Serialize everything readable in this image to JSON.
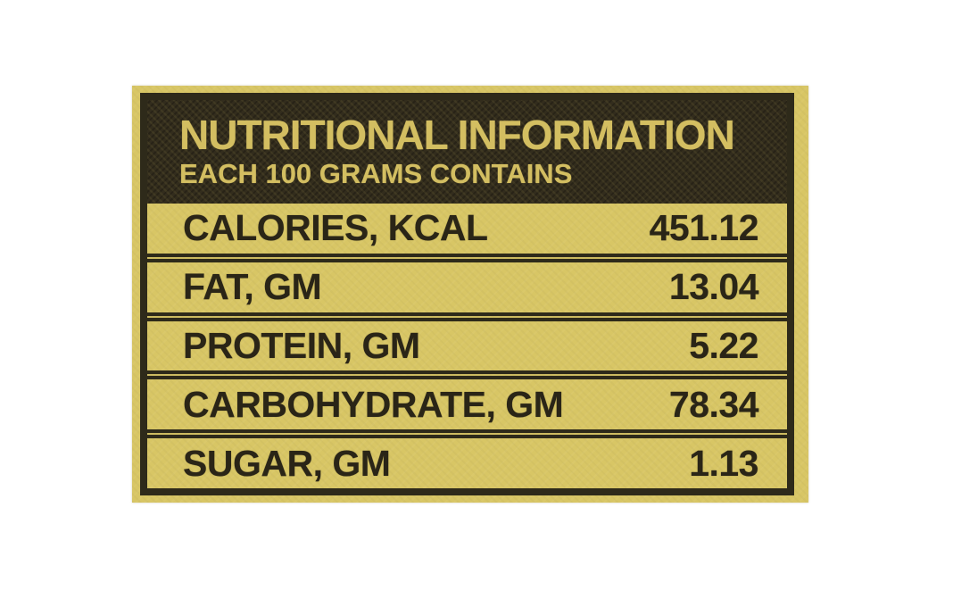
{
  "label": {
    "title": "NUTRITIONAL INFORMATION",
    "subtitle": "EACH 100 GRAMS CONTAINS",
    "rows": [
      {
        "name": "CALORIES, KCAL",
        "value": "451.12"
      },
      {
        "name": "FAT, GM",
        "value": "13.04"
      },
      {
        "name": "PROTEIN, GM",
        "value": "5.22"
      },
      {
        "name": "CARBOHYDRATE, GM",
        "value": "78.34"
      },
      {
        "name": "SUGAR, GM",
        "value": "1.13"
      }
    ],
    "colors": {
      "label_background": "#d8c665",
      "header_background": "#332d1d",
      "header_text": "#d3be61",
      "row_text": "#2a2517",
      "border": "#2e2a1a",
      "page_background": "#ffffff"
    }
  }
}
